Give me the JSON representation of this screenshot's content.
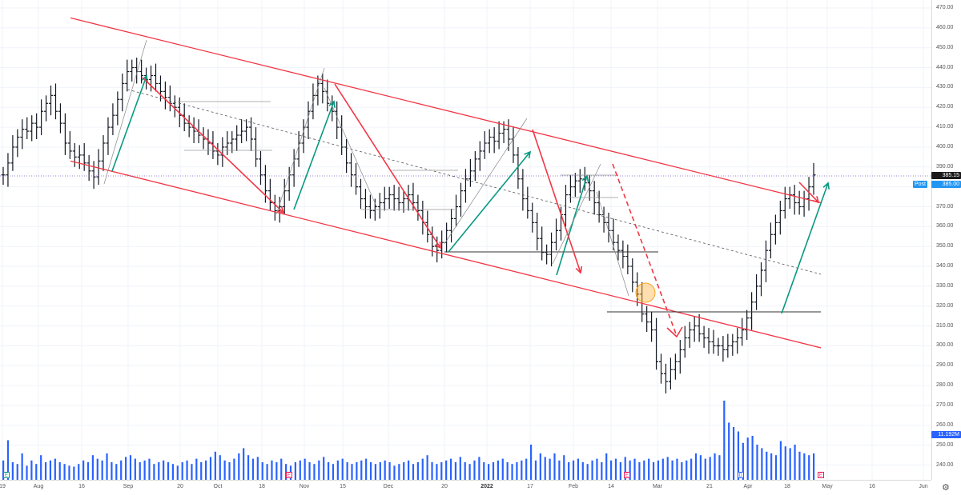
{
  "chart_data": {
    "type": "ohlc",
    "price_axis": {
      "ylim": [
        235,
        475
      ],
      "ticks": [
        "470.00",
        "460.00",
        "450.00",
        "440.00",
        "430.00",
        "420.00",
        "410.00",
        "400.00",
        "390.00",
        "380.00",
        "370.00",
        "360.00",
        "350.00",
        "340.00",
        "330.00",
        "320.00",
        "310.00",
        "300.00",
        "290.00",
        "280.00",
        "270.00",
        "260.00",
        "250.00",
        "240.00"
      ]
    },
    "time_axis": {
      "labels": [
        "19",
        "Aug",
        "16",
        "Sep",
        "20",
        "Oct",
        "18",
        "Nov",
        "15",
        "Dec",
        "20",
        "2022",
        "17",
        "Feb",
        "14",
        "Mar",
        "21",
        "Apr",
        "18",
        "May",
        "16",
        "Jun"
      ],
      "bold": [
        "2022"
      ]
    },
    "last_price_label": "385.15",
    "post_price_label": "385.00",
    "post_label": "Post",
    "volume_label": "11.192M",
    "event_markers": [
      {
        "label": "E",
        "color": "green"
      },
      {
        "label": "E",
        "color": "pink"
      },
      {
        "label": "E",
        "color": "pink"
      },
      {
        "label": "D",
        "color": "blue"
      },
      {
        "label": "E",
        "color": "pink"
      }
    ],
    "price_path": [
      386,
      392,
      400,
      405,
      409,
      408,
      412,
      410,
      418,
      422,
      426,
      418,
      412,
      402,
      398,
      395,
      396,
      392,
      388,
      385,
      393,
      402,
      410,
      416,
      424,
      432,
      438,
      440,
      438,
      436,
      434,
      436,
      432,
      428,
      425,
      422,
      420,
      416,
      412,
      410,
      408,
      406,
      404,
      402,
      398,
      396,
      400,
      402,
      404,
      406,
      408,
      410,
      404,
      394,
      386,
      378,
      372,
      368,
      370,
      378,
      386,
      394,
      402,
      410,
      418,
      426,
      432,
      428,
      422,
      418,
      410,
      400,
      392,
      386,
      380,
      374,
      370,
      368,
      370,
      372,
      374,
      376,
      374,
      372,
      374,
      376,
      372,
      368,
      362,
      356,
      350,
      348,
      352,
      358,
      364,
      370,
      378,
      384,
      388,
      394,
      398,
      402,
      405,
      403,
      407,
      409,
      404,
      396,
      384,
      374,
      368,
      362,
      354,
      347,
      346,
      352,
      358,
      366,
      376,
      380,
      383,
      384,
      382,
      378,
      372,
      366,
      362,
      358,
      352,
      348,
      345,
      340,
      332,
      326,
      316,
      312,
      308,
      292,
      286,
      282,
      288,
      292,
      298,
      304,
      308,
      310,
      306,
      304,
      302,
      300,
      300,
      298,
      300,
      302,
      304,
      308,
      314,
      322,
      330,
      338,
      348,
      356,
      362,
      368,
      374,
      376,
      372,
      370,
      374,
      380,
      386
    ],
    "volume_path": [
      0.22,
      0.45,
      0.2,
      0.18,
      0.3,
      0.16,
      0.22,
      0.18,
      0.28,
      0.2,
      0.22,
      0.24,
      0.2,
      0.18,
      0.16,
      0.15,
      0.18,
      0.22,
      0.2,
      0.28,
      0.24,
      0.22,
      0.3,
      0.2,
      0.18,
      0.22,
      0.26,
      0.28,
      0.24,
      0.2,
      0.22,
      0.24,
      0.18,
      0.2,
      0.22,
      0.2,
      0.18,
      0.16,
      0.2,
      0.22,
      0.18,
      0.24,
      0.2,
      0.22,
      0.26,
      0.32,
      0.28,
      0.22,
      0.2,
      0.24,
      0.3,
      0.36,
      0.28,
      0.24,
      0.26,
      0.2,
      0.18,
      0.22,
      0.2,
      0.24,
      0.18,
      0.16,
      0.2,
      0.22,
      0.24,
      0.2,
      0.18,
      0.22,
      0.26,
      0.2,
      0.18,
      0.22,
      0.24,
      0.2,
      0.18,
      0.2,
      0.22,
      0.24,
      0.2,
      0.18,
      0.2,
      0.22,
      0.2,
      0.16,
      0.18,
      0.2,
      0.22,
      0.18,
      0.2,
      0.24,
      0.28,
      0.2,
      0.18,
      0.2,
      0.22,
      0.24,
      0.2,
      0.26,
      0.2,
      0.18,
      0.22,
      0.26,
      0.2,
      0.18,
      0.2,
      0.22,
      0.24,
      0.2,
      0.18,
      0.2,
      0.22,
      0.24,
      0.4,
      0.22,
      0.3,
      0.26,
      0.24,
      0.3,
      0.22,
      0.28,
      0.2,
      0.22,
      0.24,
      0.2,
      0.18,
      0.22,
      0.24,
      0.2,
      0.3,
      0.22,
      0.24,
      0.2,
      0.26,
      0.22,
      0.24,
      0.2,
      0.22,
      0.24,
      0.2,
      0.22,
      0.24,
      0.26,
      0.22,
      0.24,
      0.2,
      0.22,
      0.24,
      0.3,
      0.28,
      0.24,
      0.26,
      0.3,
      0.28,
      0.9,
      0.65,
      0.6,
      0.55,
      0.42,
      0.48,
      0.5,
      0.4,
      0.36,
      0.32,
      0.3,
      0.28,
      0.44,
      0.38,
      0.36,
      0.4,
      0.32,
      0.3,
      0.28,
      0.3
    ],
    "overlays": {
      "channel_upper": [
        [
          0,
          465
        ],
        [
          1.0,
          372
        ]
      ],
      "channel_lower": [
        [
          0,
          393
        ],
        [
          1.0,
          299
        ]
      ],
      "channel_mid": [
        [
          0.076,
          429
        ],
        [
          1.0,
          336
        ]
      ],
      "support_line": [
        [
          0.487,
          347
        ],
        [
          0.705,
          347
        ]
      ],
      "support_line_2": [
        [
          0.65,
          317
        ],
        [
          0.88,
          317
        ]
      ]
    },
    "xlabel": "",
    "ylabel": ""
  },
  "ui": {
    "gear_icon": "⚙",
    "colors": {
      "channel": "#f23645",
      "up_arrow": "#089981",
      "down_arrow": "#f23645",
      "bar": "#131722",
      "volume": "#2962ff",
      "grid": "#f0f3fa",
      "dotted": "#7e57c2"
    }
  }
}
